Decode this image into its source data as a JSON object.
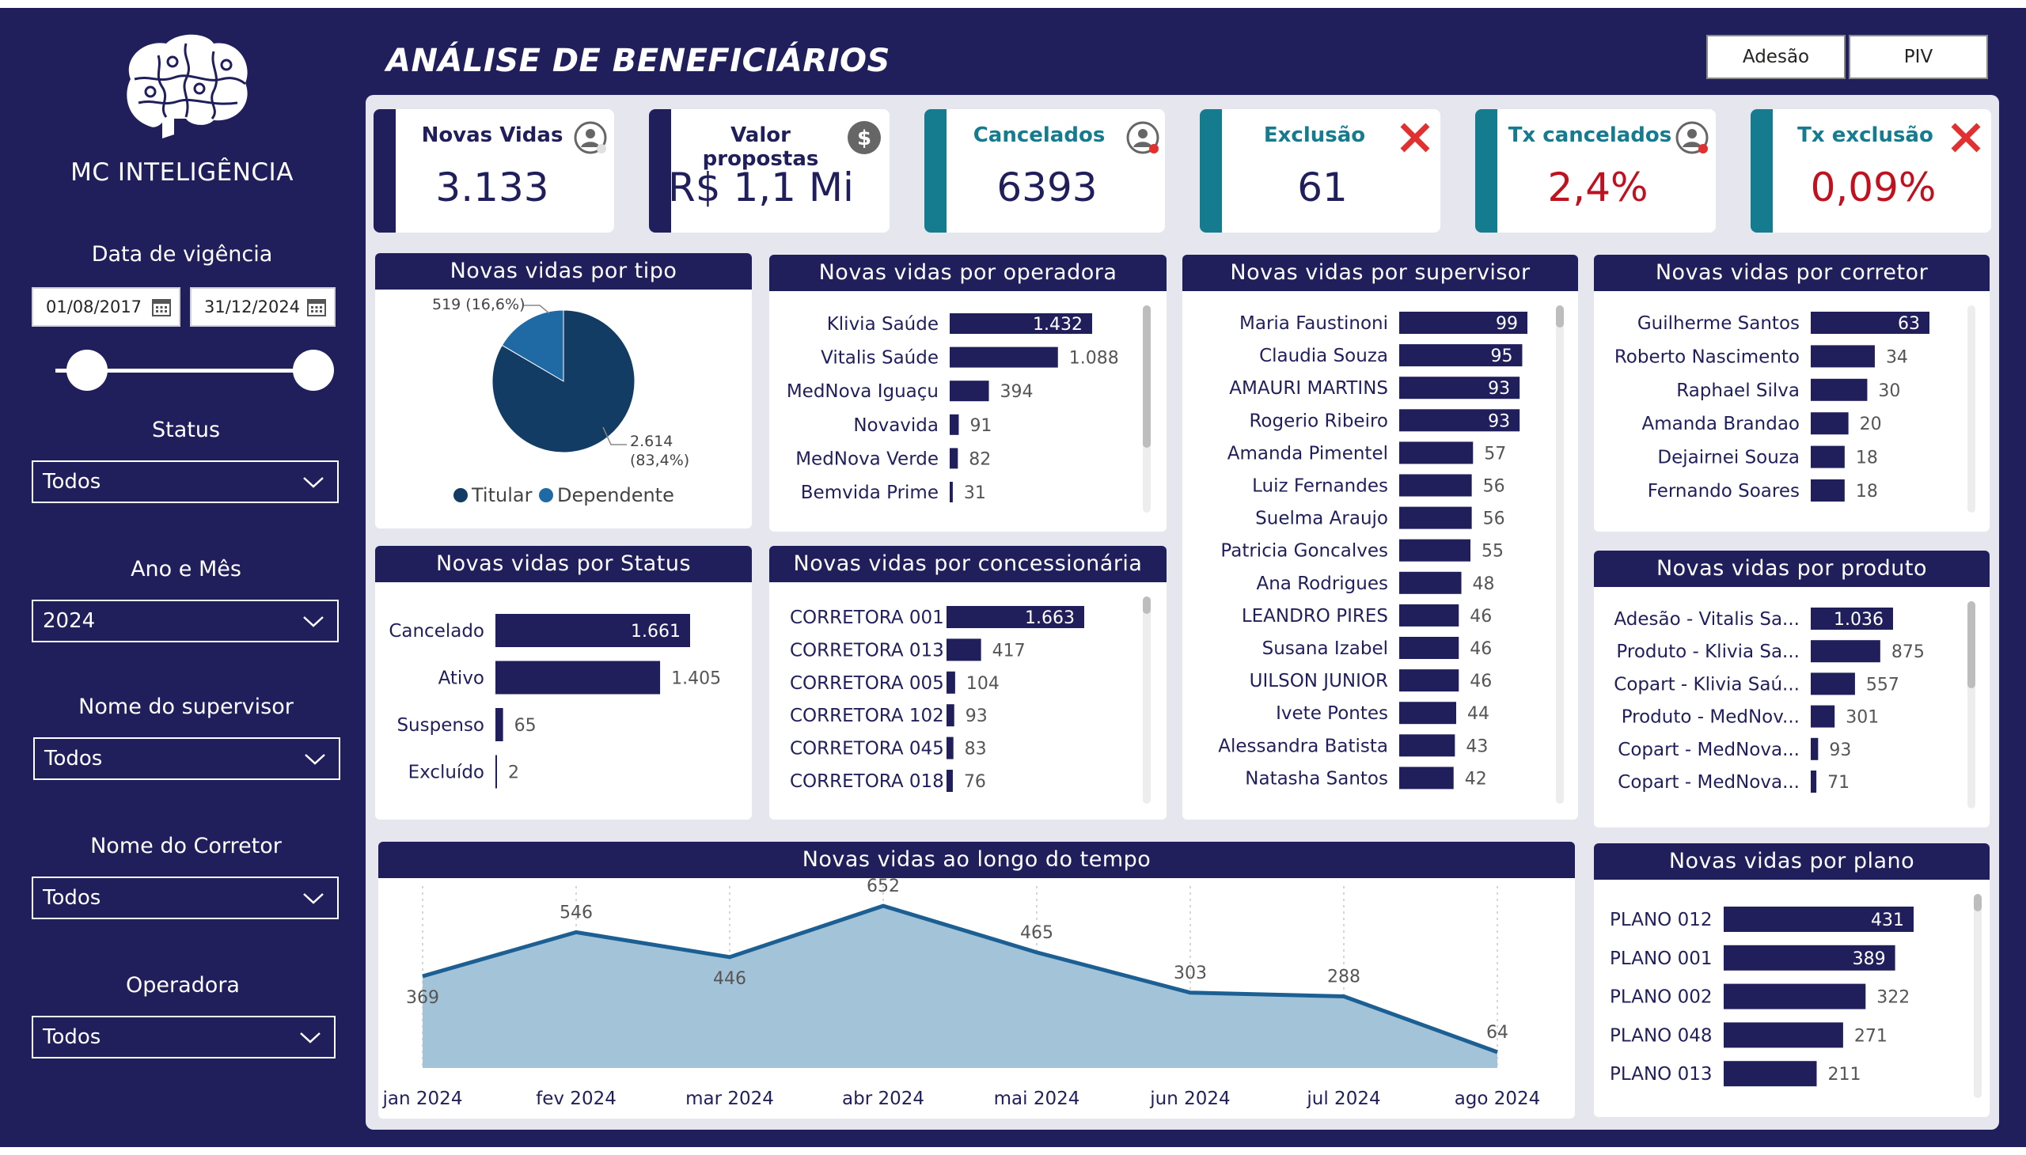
{
  "colors": {
    "navy": "#201f5c",
    "teal": "#157b8f",
    "red": "#c0111f",
    "bar": "#201f5c",
    "pie_main": "#123c63",
    "pie_minor": "#1f6aa5",
    "area_fill": "#a3c3d9",
    "area_line": "#1c5f93"
  },
  "sidebar": {
    "brand": "MC INTELIGÊNCIA",
    "logo_icon": "brain-puzzle-icon",
    "date_filter": {
      "label": "Data de vigência",
      "start": "01/08/2017",
      "end": "31/12/2024"
    },
    "filters": [
      {
        "label": "Status",
        "value": "Todos"
      },
      {
        "label": "Ano e Mês",
        "value": "2024"
      },
      {
        "label": "Nome do supervisor",
        "value": "Todos"
      },
      {
        "label": "Nome do Corretor",
        "value": "Todos"
      },
      {
        "label": "Operadora",
        "value": "Todos"
      }
    ]
  },
  "header": {
    "title": "ANÁLISE DE BENEFICIÁRIOS",
    "buttons": [
      "Adesão",
      "PIV"
    ]
  },
  "kpis": [
    {
      "title": "Novas Vidas",
      "value": "3.133",
      "icon": "user-icon"
    },
    {
      "title": "Valor propostas",
      "value": "R$ 1,1 Mi",
      "icon": "dollar-icon"
    },
    {
      "title": "Cancelados",
      "value": "6393",
      "icon": "user-cancel-icon"
    },
    {
      "title": "Exclusão",
      "value": "61",
      "icon": "x-icon"
    },
    {
      "title": "Tx cancelados",
      "value": "2,4%",
      "icon": "user-cancel-icon"
    },
    {
      "title": "Tx exclusão",
      "value": "0,09%",
      "icon": "x-icon"
    }
  ],
  "chart_data": [
    {
      "id": "tipo",
      "type": "pie",
      "title": "Novas vidas por tipo",
      "labels": [
        "Titular",
        "Dependente"
      ],
      "values": [
        2614,
        519
      ],
      "data_labels": [
        "2.614 (83,4%)",
        "519 (16,6%)"
      ]
    },
    {
      "id": "operadora",
      "type": "bar",
      "title": "Novas vidas por operadora",
      "max": 1432,
      "categories": [
        "Klivia Saúde",
        "Vitalis Saúde",
        "MedNova Iguaçu",
        "Novavida",
        "MedNova Verde",
        "Bemvida Prime"
      ],
      "values": [
        1432,
        1088,
        394,
        91,
        82,
        31
      ],
      "labels": [
        "1.432",
        "1.088",
        "394",
        "91",
        "82",
        "31"
      ]
    },
    {
      "id": "supervisor",
      "type": "bar",
      "title": "Novas vidas por supervisor",
      "max": 99,
      "categories": [
        "Maria Faustinoni",
        "Claudia Souza",
        "AMAURI MARTINS",
        "Rogerio Ribeiro",
        "Amanda Pimentel",
        "Luiz Fernandes",
        "Suelma Araujo",
        "Patricia Goncalves",
        "Ana Rodrigues",
        "LEANDRO PIRES",
        "Susana Izabel",
        "UILSON JUNIOR",
        "Ivete Pontes",
        "Alessandra Batista",
        "Natasha Santos"
      ],
      "values": [
        99,
        95,
        93,
        93,
        57,
        56,
        56,
        55,
        48,
        46,
        46,
        46,
        44,
        43,
        42
      ],
      "labels": [
        "99",
        "95",
        "93",
        "93",
        "57",
        "56",
        "56",
        "55",
        "48",
        "46",
        "46",
        "46",
        "44",
        "43",
        "42"
      ]
    },
    {
      "id": "corretor",
      "type": "bar",
      "title": "Novas vidas por corretor",
      "max": 63,
      "categories": [
        "Guilherme Santos",
        "Roberto Nascimento",
        "Raphael Silva",
        "Amanda Brandao",
        "Dejairnei Souza",
        "Fernando Soares"
      ],
      "values": [
        63,
        34,
        30,
        20,
        18,
        18
      ],
      "labels": [
        "63",
        "34",
        "30",
        "20",
        "18",
        "18"
      ]
    },
    {
      "id": "status",
      "type": "bar",
      "title": "Novas vidas por Status",
      "max": 1661,
      "categories": [
        "Cancelado",
        "Ativo",
        "Suspenso",
        "Excluído"
      ],
      "values": [
        1661,
        1405,
        65,
        2
      ],
      "labels": [
        "1.661",
        "1.405",
        "65",
        "2"
      ]
    },
    {
      "id": "concessionaria",
      "type": "bar",
      "title": "Novas vidas por concessionária",
      "max": 1663,
      "categories": [
        "CORRETORA 001",
        "CORRETORA 013",
        "CORRETORA 005",
        "CORRETORA 102",
        "CORRETORA 045",
        "CORRETORA 018"
      ],
      "values": [
        1663,
        417,
        104,
        93,
        83,
        76
      ],
      "labels": [
        "1.663",
        "417",
        "104",
        "93",
        "83",
        "76"
      ]
    },
    {
      "id": "produto",
      "type": "bar",
      "title": "Novas vidas por produto",
      "max": 1036,
      "categories": [
        "Adesão - Vitalis Sa...",
        "Produto - Klivia Sa...",
        "Copart - Klivia Saú...",
        "Produto - MedNov...",
        "Copart - MedNova...",
        "Copart - MedNova..."
      ],
      "values": [
        1036,
        875,
        557,
        301,
        93,
        71
      ],
      "labels": [
        "1.036",
        "875",
        "557",
        "301",
        "93",
        "71"
      ]
    },
    {
      "id": "plano",
      "type": "bar",
      "title": "Novas vidas por plano",
      "max": 431,
      "categories": [
        "PLANO 012",
        "PLANO 001",
        "PLANO 002",
        "PLANO 048",
        "PLANO 013"
      ],
      "values": [
        431,
        389,
        322,
        271,
        211
      ],
      "labels": [
        "431",
        "389",
        "322",
        "271",
        "211"
      ]
    },
    {
      "id": "tempo",
      "type": "area",
      "title": "Novas vidas ao longo do tempo",
      "x": [
        "jan 2024",
        "fev 2024",
        "mar 2024",
        "abr 2024",
        "mai 2024",
        "jun 2024",
        "jul 2024",
        "ago 2024"
      ],
      "values": [
        369,
        546,
        446,
        652,
        465,
        303,
        288,
        64
      ],
      "ylim": [
        0,
        700
      ]
    }
  ]
}
